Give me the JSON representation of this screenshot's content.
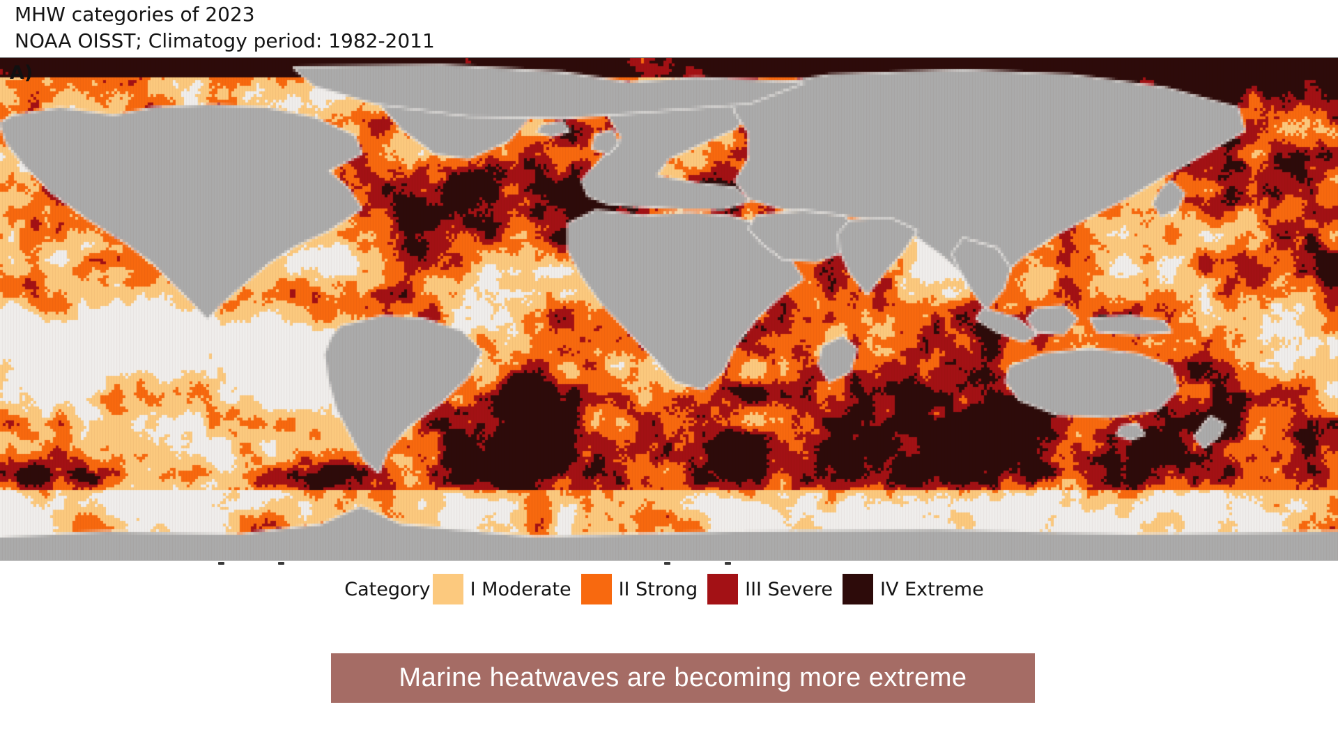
{
  "header": {
    "title": "MHW categories of 2023",
    "subtitle": "NOAA OISST; Climatogy period: 1982-2011"
  },
  "map": {
    "panel_label": "A)",
    "land_color": "#ababab",
    "no_mhw_color": "#f0eeec",
    "border_color": "#8d8d8d",
    "description": "Global equirectangular map of 2023 marine heatwave categories; land masses gray, ocean colored by highest MHW category"
  },
  "legend": {
    "title": "Category",
    "items": [
      {
        "label": "I Moderate",
        "color": "#fcc97e"
      },
      {
        "label": "II Strong",
        "color": "#f8690f"
      },
      {
        "label": "III Severe",
        "color": "#a31115"
      },
      {
        "label": "IV Extreme",
        "color": "#2d0b0a"
      }
    ]
  },
  "banner": {
    "text": "Marine heatwaves are becoming more extreme",
    "background": "#a56c65",
    "text_color": "#ffffff"
  }
}
